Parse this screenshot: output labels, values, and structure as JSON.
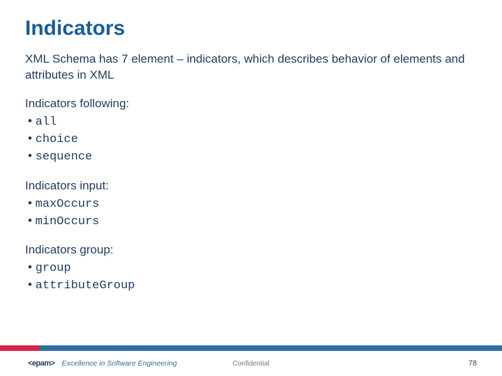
{
  "colors": {
    "title": "#1a5c99",
    "body": "#1d3a5f",
    "bar_red": "#d6244b",
    "bar_blue": "#2f6ea3",
    "logo": "#1d3a5f",
    "tagline": "#2f6ea3"
  },
  "title": "Indicators",
  "intro": "XML Schema has 7 element – indicators, which describes behavior of elements and attributes in XML",
  "sections": [
    {
      "label": "Indicators following:",
      "items": [
        "all",
        "choice",
        "sequence"
      ]
    },
    {
      "label": "Indicators input:",
      "items": [
        "maxOccurs",
        "minOccurs"
      ]
    },
    {
      "label": "Indicators group:",
      "items": [
        "group",
        "attributeGroup"
      ]
    }
  ],
  "footer": {
    "logo": "<epam>",
    "tagline": "Excellence in Software Engineering",
    "confidential": "Confidential",
    "page": "78"
  }
}
